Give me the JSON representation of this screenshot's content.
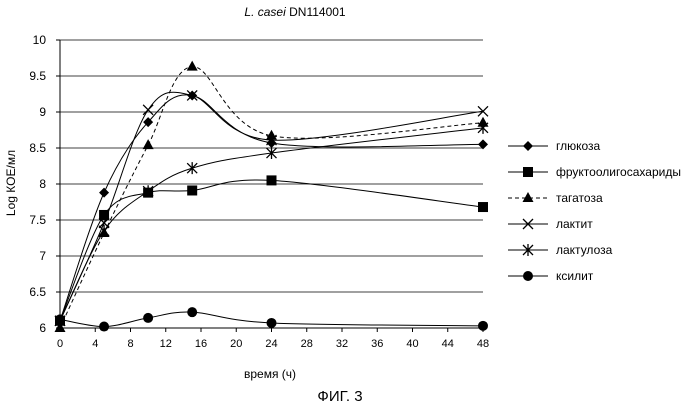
{
  "chart_data": {
    "type": "line",
    "title_italic": "L. casei",
    "title_rest": "DN114001",
    "xlabel": "время (ч)",
    "ylabel": "Log КОЕ/мл",
    "caption": "ФИГ. 3",
    "xlim": [
      0,
      48
    ],
    "ylim": [
      6,
      10
    ],
    "x_ticks": [
      0,
      4,
      8,
      12,
      16,
      20,
      24,
      28,
      32,
      36,
      40,
      44,
      48
    ],
    "y_ticks": [
      "6",
      "6.5",
      "7",
      "7.5",
      "8",
      "8.5",
      "9",
      "9.5",
      "10"
    ],
    "grid": "horizontal",
    "legend_position": "right",
    "series": [
      {
        "name": "глюкоза",
        "marker": "diamond",
        "line": "solid",
        "x": [
          0,
          5,
          10,
          15,
          24,
          48
        ],
        "y": [
          6.1,
          7.88,
          8.86,
          9.23,
          8.57,
          8.55
        ]
      },
      {
        "name": "фруктоолигосахариды",
        "marker": "square",
        "line": "solid",
        "x": [
          0,
          5,
          10,
          15,
          24,
          48
        ],
        "y": [
          6.1,
          7.57,
          7.88,
          7.91,
          8.05,
          7.68
        ]
      },
      {
        "name": "тагатоза",
        "marker": "triangle",
        "line": "dashed",
        "x": [
          0,
          5,
          10,
          15,
          24,
          48
        ],
        "y": [
          6.0,
          7.32,
          8.54,
          9.63,
          8.67,
          8.85
        ]
      },
      {
        "name": "лактит",
        "marker": "x",
        "line": "solid",
        "x": [
          0,
          5,
          10,
          15,
          24,
          48
        ],
        "y": [
          6.1,
          7.46,
          9.03,
          9.23,
          8.61,
          9.01
        ]
      },
      {
        "name": "лактулоза",
        "marker": "asterisk",
        "line": "solid",
        "x": [
          0,
          5,
          10,
          15,
          24,
          48
        ],
        "y": [
          6.1,
          7.35,
          7.9,
          8.22,
          8.43,
          8.78
        ]
      },
      {
        "name": "ксилит",
        "marker": "circle",
        "line": "solid",
        "x": [
          0,
          5,
          10,
          15,
          24,
          48
        ],
        "y": [
          6.12,
          6.02,
          6.14,
          6.22,
          6.07,
          6.03
        ]
      }
    ]
  }
}
